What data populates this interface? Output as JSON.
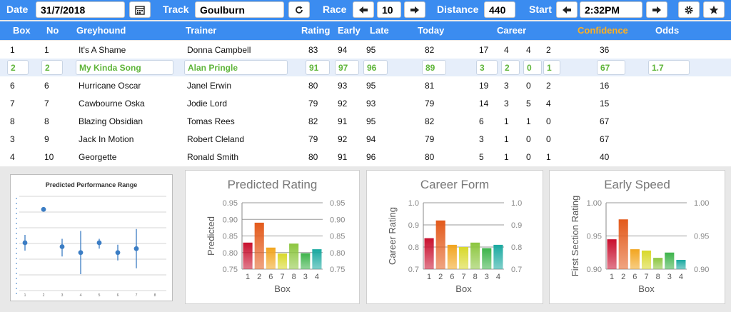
{
  "toolbar": {
    "date_label": "Date",
    "date_value": "31/7/2018",
    "track_label": "Track",
    "track_value": "Goulburn",
    "race_label": "Race",
    "race_value": "10",
    "distance_label": "Distance",
    "distance_value": "440",
    "start_label": "Start",
    "start_value": "2:32PM",
    "icons": [
      "calendar-icon",
      "refresh-icon",
      "arrow-left-icon",
      "arrow-right-icon",
      "gear-icon",
      "star-icon"
    ]
  },
  "columns": {
    "box": "Box",
    "no": "No",
    "greyhound": "Greyhound",
    "trainer": "Trainer",
    "rating": "Rating",
    "early": "Early",
    "late": "Late",
    "today": "Today",
    "career": "Career",
    "confidence": "Confidence",
    "odds": "Odds"
  },
  "rows": [
    {
      "box": "1",
      "no": "1",
      "dog": "It's A Shame",
      "trainer": "Donna Campbell",
      "rating": "83",
      "early": "94",
      "late": "95",
      "today": "82",
      "c1": "17",
      "c2": "4",
      "c3": "4",
      "c4": "2",
      "conf": "36",
      "odds": ""
    },
    {
      "box": "2",
      "no": "2",
      "dog": "My Kinda Song",
      "trainer": "Alan Pringle",
      "rating": "91",
      "early": "97",
      "late": "96",
      "today": "89",
      "c1": "3",
      "c2": "2",
      "c3": "0",
      "c4": "1",
      "conf": "67",
      "odds": "1.7"
    },
    {
      "box": "6",
      "no": "6",
      "dog": "Hurricane Oscar",
      "trainer": "Janel Erwin",
      "rating": "80",
      "early": "93",
      "late": "95",
      "today": "81",
      "c1": "19",
      "c2": "3",
      "c3": "0",
      "c4": "2",
      "conf": "16",
      "odds": ""
    },
    {
      "box": "7",
      "no": "7",
      "dog": "Cawbourne Oska",
      "trainer": "Jodie Lord",
      "rating": "79",
      "early": "92",
      "late": "93",
      "today": "79",
      "c1": "14",
      "c2": "3",
      "c3": "5",
      "c4": "4",
      "conf": "15",
      "odds": ""
    },
    {
      "box": "8",
      "no": "8",
      "dog": "Blazing Obsidian",
      "trainer": "Tomas Rees",
      "rating": "82",
      "early": "91",
      "late": "95",
      "today": "82",
      "c1": "6",
      "c2": "1",
      "c3": "1",
      "c4": "0",
      "conf": "67",
      "odds": ""
    },
    {
      "box": "3",
      "no": "9",
      "dog": "Jack In Motion",
      "trainer": "Robert Cleland",
      "rating": "79",
      "early": "92",
      "late": "94",
      "today": "79",
      "c1": "3",
      "c2": "1",
      "c3": "0",
      "c4": "0",
      "conf": "67",
      "odds": ""
    },
    {
      "box": "4",
      "no": "10",
      "dog": "Georgette",
      "trainer": "Ronald Smith",
      "rating": "80",
      "early": "91",
      "late": "96",
      "today": "80",
      "c1": "5",
      "c2": "1",
      "c3": "0",
      "c4": "1",
      "conf": "40",
      "odds": ""
    }
  ],
  "chart_data": [
    {
      "type": "scatter",
      "title": "Predicted Performance Range",
      "x": [
        1,
        2,
        3,
        4,
        5,
        6,
        7
      ],
      "y": [
        0.84,
        0.925,
        0.83,
        0.815,
        0.84,
        0.815,
        0.825
      ],
      "low": [
        0.82,
        0.925,
        0.805,
        0.76,
        0.825,
        0.795,
        0.775
      ],
      "high": [
        0.86,
        0.925,
        0.85,
        0.87,
        0.85,
        0.835,
        0.875
      ],
      "xticks": [
        "1",
        "2",
        "3",
        "4",
        "5",
        "6",
        "7",
        "8"
      ],
      "ylim": [
        0.7,
        1.0
      ],
      "color": "#3b7dc4"
    },
    {
      "type": "bar",
      "title": "Predicted Rating",
      "xlabel": "Box",
      "ylabel": "Predicted",
      "categories": [
        "1",
        "2",
        "6",
        "7",
        "8",
        "3",
        "4"
      ],
      "values": [
        0.83,
        0.89,
        0.815,
        0.797,
        0.827,
        0.798,
        0.81
      ],
      "ylim": [
        0.75,
        0.95
      ],
      "yticks": [
        "0.75",
        "0.80",
        "0.85",
        "0.90",
        "0.95"
      ],
      "colors": [
        "#c8102e",
        "#e35a1b",
        "#f2a51f",
        "#d8d82a",
        "#8cc63f",
        "#3db34a",
        "#1aa9a0"
      ]
    },
    {
      "type": "bar",
      "title": "Career Form",
      "xlabel": "Box",
      "ylabel": "Career Rating",
      "categories": [
        "1",
        "2",
        "6",
        "7",
        "8",
        "3",
        "4"
      ],
      "values": [
        0.84,
        0.92,
        0.81,
        0.8,
        0.82,
        0.795,
        0.81
      ],
      "ylim": [
        0.7,
        1.0
      ],
      "yticks": [
        "0.7",
        "0.8",
        "0.9",
        "1.0"
      ],
      "colors": [
        "#c8102e",
        "#e35a1b",
        "#f2a51f",
        "#d8d82a",
        "#8cc63f",
        "#3db34a",
        "#1aa9a0"
      ]
    },
    {
      "type": "bar",
      "title": "Early Speed",
      "xlabel": "Box",
      "ylabel": "First Section Rating",
      "categories": [
        "1",
        "2",
        "6",
        "7",
        "8",
        "3",
        "4"
      ],
      "values": [
        0.945,
        0.975,
        0.93,
        0.928,
        0.917,
        0.925,
        0.914
      ],
      "ylim": [
        0.9,
        1.0
      ],
      "yticks": [
        "0.90",
        "0.95",
        "1.00"
      ],
      "colors": [
        "#c8102e",
        "#e35a1b",
        "#f2a51f",
        "#d8d82a",
        "#8cc63f",
        "#3db34a",
        "#1aa9a0"
      ]
    }
  ]
}
